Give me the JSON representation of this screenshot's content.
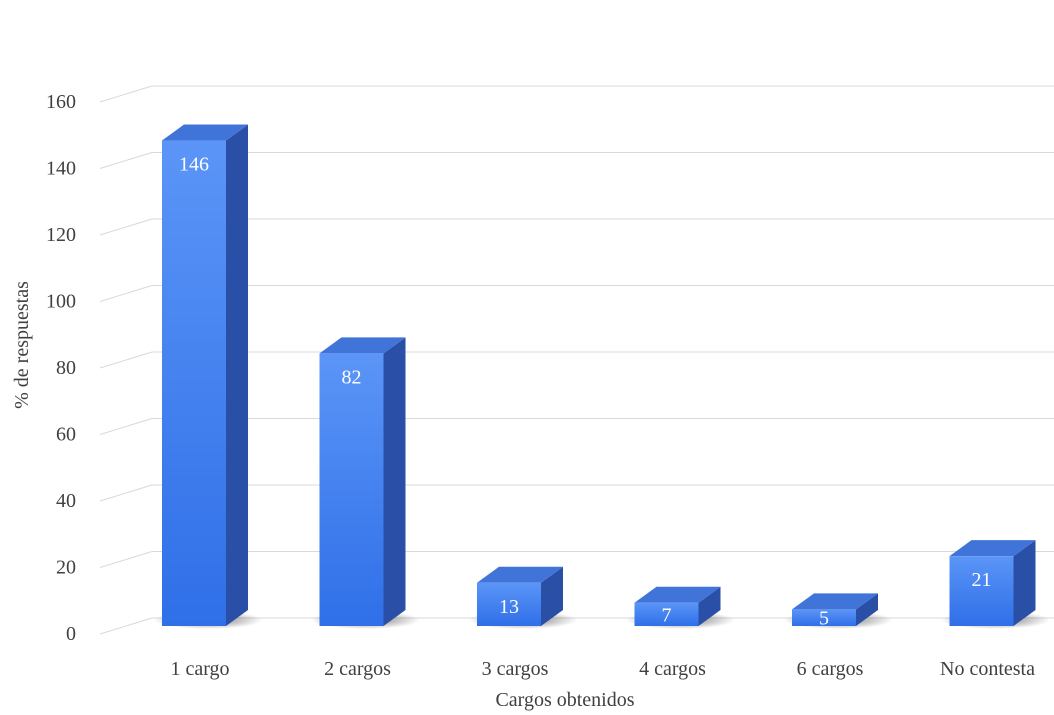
{
  "chart_data": {
    "type": "bar",
    "style": "3d-column",
    "categories": [
      "1 cargo",
      "2 cargos",
      "3 cargos",
      "4 cargos",
      "6 cargos",
      "No contesta"
    ],
    "values": [
      146,
      82,
      13,
      7,
      5,
      21
    ],
    "xlabel": "Cargos obtenidos",
    "ylabel": "% de respuestas",
    "ylim": [
      0,
      160
    ],
    "yticks": [
      0,
      20,
      40,
      60,
      80,
      100,
      120,
      140,
      160
    ],
    "grid": true,
    "legend": "none",
    "data_labels": true,
    "colors": {
      "bar_front_top": "#5b95f7",
      "bar_front_bottom": "#2f6fe8",
      "bar_side": "#2a4fa6",
      "bar_top": "#4174d8",
      "grid": "#d9d9d9",
      "text": "#404040"
    }
  }
}
